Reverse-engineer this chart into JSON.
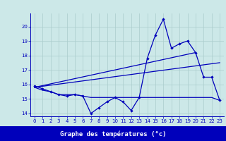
{
  "x_hours": [
    0,
    1,
    2,
    3,
    4,
    5,
    6,
    7,
    8,
    9,
    10,
    11,
    12,
    13,
    14,
    15,
    16,
    17,
    18,
    19,
    20,
    21,
    22,
    23
  ],
  "temp_main": [
    15.9,
    15.7,
    15.5,
    15.3,
    15.2,
    15.3,
    15.2,
    14.0,
    14.4,
    14.8,
    15.1,
    14.8,
    14.2,
    15.1,
    17.8,
    19.4,
    20.5,
    18.5,
    18.8,
    19.0,
    18.2,
    16.5,
    16.5,
    14.9
  ],
  "temp_flat": [
    15.8,
    15.6,
    15.5,
    15.3,
    15.3,
    15.3,
    15.2,
    15.1,
    15.1,
    15.1,
    15.1,
    15.1,
    15.1,
    15.1,
    15.1,
    15.1,
    15.1,
    15.1,
    15.1,
    15.1,
    15.1,
    15.1,
    15.1,
    14.9
  ],
  "trend1_x": [
    0,
    23
  ],
  "trend1_y": [
    15.8,
    17.5
  ],
  "trend2_x": [
    0,
    20
  ],
  "trend2_y": [
    15.8,
    18.2
  ],
  "ylim": [
    13.8,
    20.9
  ],
  "xlim": [
    -0.5,
    23.5
  ],
  "yticks": [
    14,
    15,
    16,
    17,
    18,
    19,
    20
  ],
  "xticks": [
    0,
    1,
    2,
    3,
    4,
    5,
    6,
    7,
    8,
    9,
    10,
    11,
    12,
    13,
    14,
    15,
    16,
    17,
    18,
    19,
    20,
    21,
    22,
    23
  ],
  "line_color": "#0000bb",
  "bg_color": "#cce8e8",
  "grid_color": "#aacccc",
  "xlabel": "Graphe des températures (°c)",
  "tick_fontsize": 5.0,
  "label_fontsize": 6.5,
  "label_bar_color": "#0000bb"
}
